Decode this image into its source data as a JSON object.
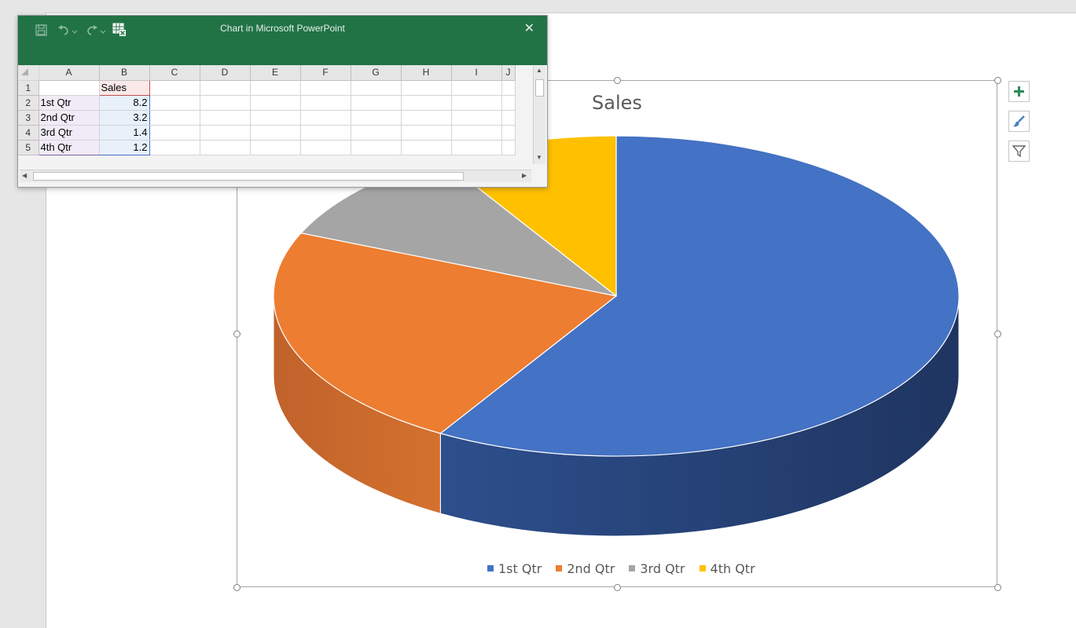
{
  "window": {
    "title": "Chart in Microsoft PowerPoint"
  },
  "toolbar": {
    "icons": [
      "save-icon",
      "undo-icon",
      "redo-icon",
      "edit-data-in-excel-icon"
    ]
  },
  "sheet": {
    "column_headers": [
      "A",
      "B",
      "C",
      "D",
      "E",
      "F",
      "G",
      "H",
      "I",
      "J"
    ],
    "row_headers": [
      "1",
      "2",
      "3",
      "4",
      "5"
    ],
    "rows": [
      [
        "",
        "Sales"
      ],
      [
        "1st Qtr",
        "8.2"
      ],
      [
        "2nd Qtr",
        "3.2"
      ],
      [
        "3rd Qtr",
        "1.4"
      ],
      [
        "4th Qtr",
        "1.2"
      ]
    ]
  },
  "chart_buttons": {
    "icons": [
      "plus-icon",
      "paintbrush-icon",
      "filter-icon"
    ]
  },
  "chart_data": {
    "type": "pie",
    "style": "3d",
    "title": "Sales",
    "categories": [
      "1st Qtr",
      "2nd Qtr",
      "3rd Qtr",
      "4th Qtr"
    ],
    "values": [
      8.2,
      3.2,
      1.4,
      1.2
    ],
    "colors": [
      "#4472c4",
      "#ed7d31",
      "#a5a5a5",
      "#ffc000"
    ],
    "side_colors": [
      "#1f3561",
      "#c0622b",
      "#7c7c7c",
      "#c49400"
    ],
    "legend_position": "bottom"
  }
}
